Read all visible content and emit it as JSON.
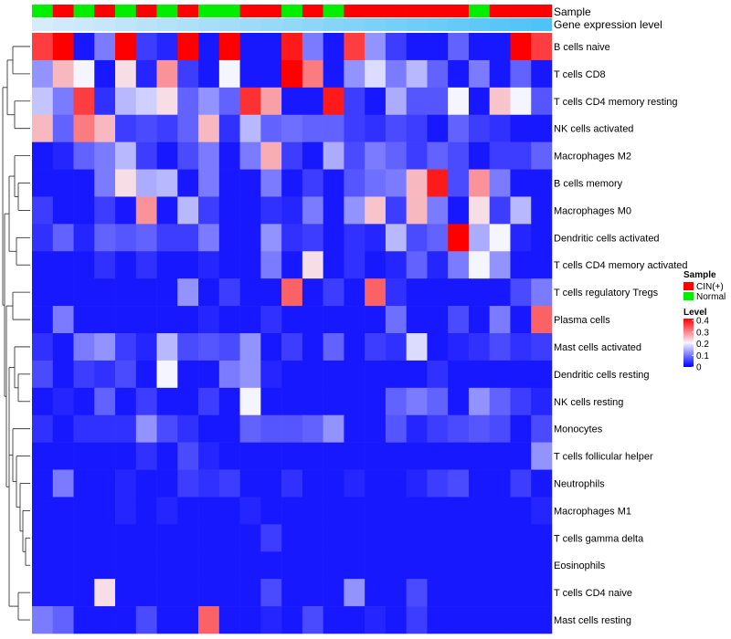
{
  "chart_data": {
    "type": "heatmap",
    "annotation_track_labels": [
      "Sample",
      "Gene expression level"
    ],
    "rows": [
      "B cells naive",
      "T cells CD8",
      "T cells CD4 memory resting",
      "NK cells activated",
      "Macrophages M2",
      "B cells memory",
      "Macrophages M0",
      "Dendritic cells activated",
      "T cells CD4 memory activated",
      "T cells regulatory  Tregs",
      "Plasma cells",
      "Mast cells activated",
      "Dendritic cells resting",
      "NK cells resting",
      "Monocytes",
      "T cells follicular helper",
      "Neutrophils",
      "Macrophages M1",
      "T cells gamma delta",
      "Eosinophils",
      "T cells CD4 naive",
      "Mast cells resting"
    ],
    "sample_groups": [
      "Normal",
      "CIN(+)",
      "Normal",
      "CIN(+)",
      "Normal",
      "CIN(+)",
      "Normal",
      "CIN(+)",
      "Normal",
      "Normal",
      "CIN(+)",
      "CIN(+)",
      "Normal",
      "CIN(+)",
      "Normal",
      "CIN(+)",
      "CIN(+)",
      "CIN(+)",
      "CIN(+)",
      "CIN(+)",
      "CIN(+)",
      "Normal",
      "CIN(+)",
      "CIN(+)",
      "CIN(+)"
    ],
    "expression_track_values": [
      0.02,
      0.04,
      0.06,
      0.08,
      0.1,
      0.12,
      0.14,
      0.16,
      0.18,
      0.2,
      0.22,
      0.24,
      0.26,
      0.28,
      0.3,
      0.32,
      0.34,
      0.36,
      0.38,
      0.4,
      0.42,
      0.44,
      0.46,
      0.48,
      0.5
    ],
    "values": [
      [
        0.35,
        0.4,
        0.02,
        0.1,
        0.4,
        0.05,
        0.03,
        0.4,
        0.02,
        0.4,
        0.02,
        0.02,
        0.38,
        0.1,
        0.02,
        0.35,
        0.12,
        0.05,
        0.02,
        0.02,
        0.08,
        0.02,
        0.02,
        0.4,
        0.35
      ],
      [
        0.12,
        0.25,
        0.2,
        0.02,
        0.22,
        0.03,
        0.28,
        0.05,
        0.02,
        0.2,
        0.02,
        0.02,
        0.4,
        0.3,
        0.02,
        0.12,
        0.18,
        0.1,
        0.15,
        0.08,
        0.02,
        0.1,
        0.02,
        0.08,
        0.02
      ],
      [
        0.16,
        0.1,
        0.35,
        0.04,
        0.15,
        0.17,
        0.22,
        0.08,
        0.12,
        0.08,
        0.36,
        0.27,
        0.02,
        0.02,
        0.38,
        0.05,
        0.02,
        0.14,
        0.07,
        0.07,
        0.2,
        0.02,
        0.24,
        0.2,
        0.07
      ],
      [
        0.25,
        0.08,
        0.3,
        0.25,
        0.05,
        0.06,
        0.05,
        0.08,
        0.25,
        0.04,
        0.15,
        0.08,
        0.09,
        0.08,
        0.08,
        0.05,
        0.04,
        0.06,
        0.05,
        0.02,
        0.08,
        0.05,
        0.04,
        0.02,
        0.02
      ],
      [
        0.02,
        0.03,
        0.08,
        0.1,
        0.15,
        0.05,
        0.02,
        0.06,
        0.1,
        0.02,
        0.1,
        0.26,
        0.05,
        0.02,
        0.14,
        0.06,
        0.1,
        0.08,
        0.05,
        0.08,
        0.06,
        0.02,
        0.05,
        0.05,
        0.08
      ],
      [
        0.02,
        0.02,
        0.02,
        0.1,
        0.22,
        0.14,
        0.15,
        0.02,
        0.1,
        0.02,
        0.02,
        0.1,
        0.02,
        0.05,
        0.02,
        0.07,
        0.09,
        0.1,
        0.25,
        0.38,
        0.06,
        0.28,
        0.1,
        0.02,
        0.02
      ],
      [
        0.05,
        0.02,
        0.02,
        0.05,
        0.02,
        0.28,
        0.02,
        0.15,
        0.05,
        0.02,
        0.02,
        0.04,
        0.03,
        0.1,
        0.02,
        0.12,
        0.24,
        0.05,
        0.25,
        0.1,
        0.02,
        0.22,
        0.05,
        0.15,
        0.02
      ],
      [
        0.04,
        0.08,
        0.03,
        0.08,
        0.07,
        0.08,
        0.05,
        0.05,
        0.1,
        0.02,
        0.02,
        0.12,
        0.04,
        0.05,
        0.02,
        0.04,
        0.03,
        0.15,
        0.06,
        0.08,
        0.4,
        0.14,
        0.2,
        0.03,
        0.02
      ],
      [
        0.02,
        0.02,
        0.02,
        0.04,
        0.02,
        0.04,
        0.02,
        0.02,
        0.03,
        0.02,
        0.02,
        0.1,
        0.02,
        0.22,
        0.02,
        0.04,
        0.02,
        0.03,
        0.08,
        0.03,
        0.1,
        0.2,
        0.12,
        0.02,
        0.02
      ],
      [
        0.02,
        0.02,
        0.02,
        0.02,
        0.02,
        0.02,
        0.02,
        0.12,
        0.02,
        0.05,
        0.02,
        0.02,
        0.32,
        0.02,
        0.05,
        0.02,
        0.32,
        0.04,
        0.02,
        0.02,
        0.02,
        0.02,
        0.02,
        0.06,
        0.1
      ],
      [
        0.02,
        0.1,
        0.02,
        0.02,
        0.02,
        0.02,
        0.02,
        0.02,
        0.03,
        0.02,
        0.02,
        0.04,
        0.02,
        0.02,
        0.02,
        0.02,
        0.02,
        0.09,
        0.02,
        0.02,
        0.06,
        0.02,
        0.1,
        0.02,
        0.32
      ],
      [
        0.04,
        0.02,
        0.1,
        0.12,
        0.05,
        0.03,
        0.15,
        0.06,
        0.07,
        0.06,
        0.12,
        0.02,
        0.05,
        0.02,
        0.08,
        0.02,
        0.05,
        0.04,
        0.18,
        0.02,
        0.03,
        0.04,
        0.06,
        0.04,
        0.05
      ],
      [
        0.06,
        0.02,
        0.05,
        0.04,
        0.06,
        0.02,
        0.2,
        0.02,
        0.02,
        0.1,
        0.12,
        0.03,
        0.02,
        0.02,
        0.02,
        0.02,
        0.02,
        0.02,
        0.02,
        0.04,
        0.02,
        0.02,
        0.02,
        0.02,
        0.02
      ],
      [
        0.02,
        0.03,
        0.02,
        0.08,
        0.02,
        0.05,
        0.02,
        0.02,
        0.05,
        0.02,
        0.2,
        0.02,
        0.02,
        0.02,
        0.02,
        0.02,
        0.02,
        0.08,
        0.1,
        0.08,
        0.02,
        0.12,
        0.08,
        0.05,
        0.03
      ],
      [
        0.04,
        0.02,
        0.04,
        0.04,
        0.04,
        0.12,
        0.06,
        0.04,
        0.02,
        0.02,
        0.08,
        0.07,
        0.07,
        0.08,
        0.12,
        0.02,
        0.02,
        0.07,
        0.03,
        0.05,
        0.06,
        0.07,
        0.06,
        0.02,
        0.06
      ],
      [
        0.02,
        0.02,
        0.02,
        0.02,
        0.02,
        0.04,
        0.02,
        0.06,
        0.03,
        0.02,
        0.02,
        0.02,
        0.02,
        0.02,
        0.02,
        0.02,
        0.02,
        0.02,
        0.02,
        0.02,
        0.02,
        0.02,
        0.02,
        0.02,
        0.12
      ],
      [
        0.02,
        0.1,
        0.02,
        0.02,
        0.03,
        0.02,
        0.02,
        0.05,
        0.04,
        0.05,
        0.02,
        0.02,
        0.04,
        0.02,
        0.02,
        0.03,
        0.02,
        0.02,
        0.03,
        0.05,
        0.06,
        0.02,
        0.02,
        0.05,
        0.02
      ],
      [
        0.02,
        0.02,
        0.02,
        0.02,
        0.03,
        0.02,
        0.03,
        0.02,
        0.02,
        0.02,
        0.03,
        0.02,
        0.02,
        0.02,
        0.02,
        0.02,
        0.02,
        0.02,
        0.02,
        0.02,
        0.02,
        0.02,
        0.02,
        0.02,
        0.03
      ],
      [
        0.02,
        0.02,
        0.02,
        0.02,
        0.02,
        0.02,
        0.02,
        0.02,
        0.02,
        0.02,
        0.02,
        0.05,
        0.02,
        0.02,
        0.02,
        0.02,
        0.02,
        0.02,
        0.02,
        0.02,
        0.02,
        0.02,
        0.02,
        0.02,
        0.02
      ],
      [
        0.02,
        0.02,
        0.02,
        0.02,
        0.02,
        0.02,
        0.02,
        0.02,
        0.02,
        0.02,
        0.02,
        0.02,
        0.02,
        0.02,
        0.02,
        0.02,
        0.02,
        0.02,
        0.02,
        0.02,
        0.02,
        0.02,
        0.02,
        0.02,
        0.02
      ],
      [
        0.02,
        0.02,
        0.02,
        0.22,
        0.02,
        0.02,
        0.02,
        0.02,
        0.02,
        0.02,
        0.02,
        0.06,
        0.02,
        0.02,
        0.02,
        0.12,
        0.02,
        0.02,
        0.06,
        0.02,
        0.02,
        0.02,
        0.02,
        0.02,
        0.02
      ],
      [
        0.1,
        0.08,
        0.02,
        0.02,
        0.02,
        0.06,
        0.02,
        0.02,
        0.32,
        0.02,
        0.02,
        0.03,
        0.02,
        0.06,
        0.02,
        0.02,
        0.03,
        0.02,
        0.05,
        0.02,
        0.02,
        0.02,
        0.02,
        0.02,
        0.02
      ]
    ],
    "legend": {
      "sample_title": "Sample",
      "sample_entries": [
        {
          "label": "CIN(+)",
          "color": "#ff0000"
        },
        {
          "label": "Normal",
          "color": "#00ee00"
        }
      ],
      "level_title": "Level",
      "level_ticks": [
        0.4,
        0.3,
        0.2,
        0.1,
        0
      ]
    },
    "colors": {
      "low": "#0000ff",
      "mid": "#f5f5ff",
      "high": "#ff0000",
      "track_light": "#d6ecfb",
      "track_dark": "#4fc3f7"
    },
    "color_scale": [
      0,
      0.2,
      0.4
    ],
    "row_dendrogram": true
  }
}
